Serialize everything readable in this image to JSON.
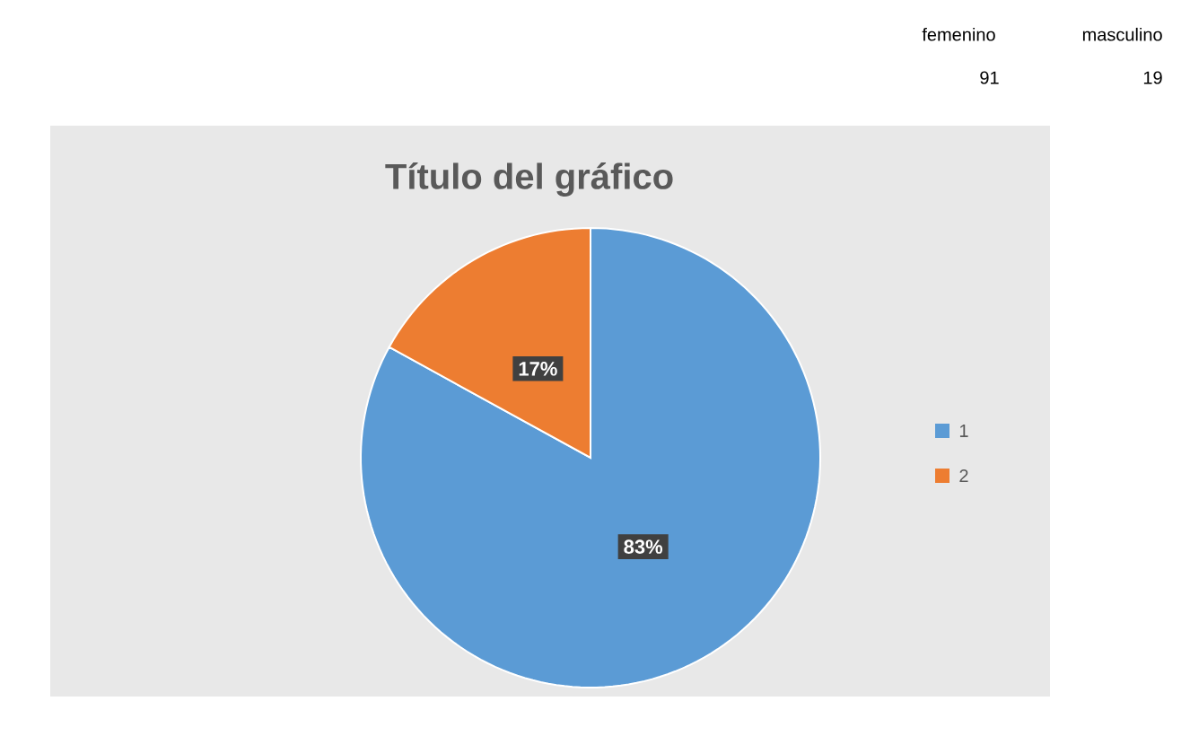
{
  "chart_data": {
    "type": "pie",
    "title": "Título del gráfico",
    "categories": [
      "1",
      "2"
    ],
    "values": [
      83,
      17
    ],
    "colors": [
      "#5b9bd5",
      "#ed7d31"
    ],
    "value_labels": [
      "83%",
      "17%"
    ],
    "legend": "right",
    "annotations": [
      "femenino",
      "masculino",
      "91",
      "19"
    ]
  }
}
